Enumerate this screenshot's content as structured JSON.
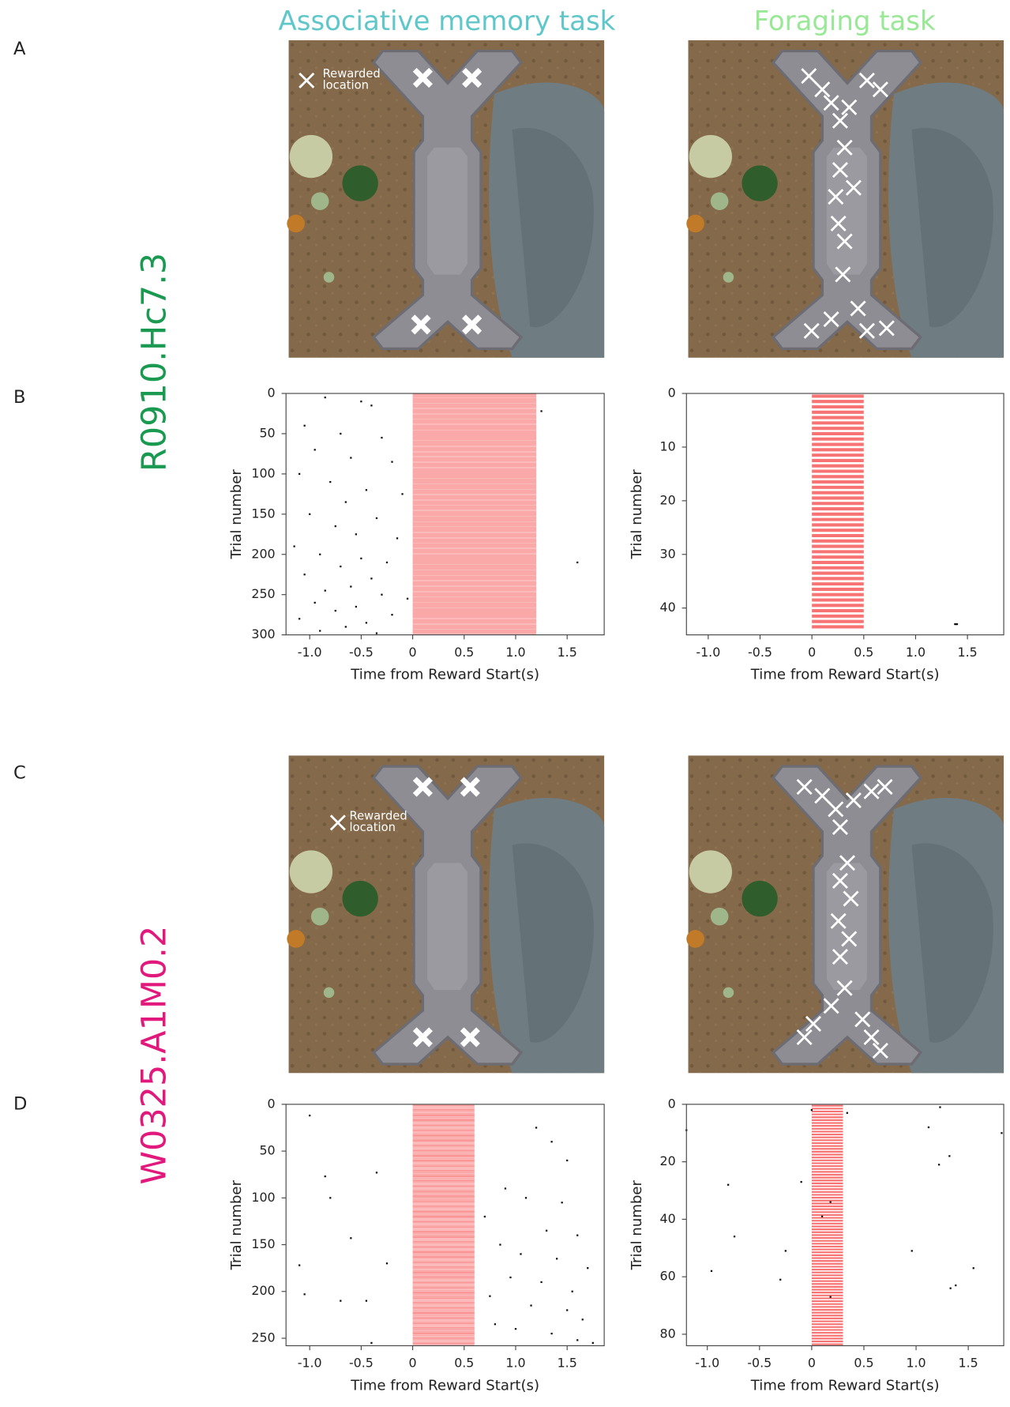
{
  "figure": {
    "column_titles": [
      "Associative memory task",
      "Foraging task"
    ],
    "panel_labels": [
      "A",
      "B",
      "C",
      "D"
    ],
    "row_labels": [
      "R0910.Hc7.3",
      "W0325.A1M0.2"
    ],
    "legend_label": [
      "Rewarded",
      "location"
    ]
  },
  "chart_data": [
    {
      "type": "raster",
      "xlabel": "Time from Reward Start(s)",
      "ylabel": "Trial number",
      "xlim": [
        -1.23,
        1.86
      ],
      "ylim": [
        0,
        300
      ],
      "xticks": [
        {
          "value": -1,
          "label": "-1.0"
        },
        -0.5,
        0,
        0.5,
        {
          "value": 1,
          "label": "1.0"
        },
        1.5
      ],
      "yticks": [
        0,
        50,
        100,
        150,
        200,
        250,
        300
      ],
      "reward_window": [
        0,
        1.2
      ],
      "n_trials": 300,
      "reward_color": "#f87474",
      "spikes": {
        "x": [
          -0.85,
          -0.5,
          -0.4,
          -1.05,
          -0.7,
          -0.3,
          -0.95,
          -0.6,
          -0.2,
          -1.1,
          -0.8,
          -0.45,
          -0.1,
          -0.65,
          -1.0,
          -0.35,
          -0.75,
          -0.55,
          -0.15,
          -1.15,
          -0.9,
          -0.5,
          -0.25,
          -0.7,
          -1.05,
          -0.4,
          -0.6,
          -0.85,
          -0.3,
          -0.05,
          -0.95,
          -0.55,
          -0.75,
          -0.2,
          -1.1,
          -0.45,
          -0.65,
          -0.9,
          -0.35,
          1.25,
          1.6
        ],
        "y": [
          5,
          10,
          15,
          40,
          50,
          55,
          70,
          80,
          85,
          100,
          110,
          120,
          125,
          135,
          150,
          155,
          165,
          175,
          180,
          190,
          200,
          205,
          210,
          215,
          225,
          230,
          240,
          245,
          250,
          255,
          260,
          265,
          270,
          275,
          280,
          285,
          290,
          295,
          298,
          22,
          210
        ]
      }
    },
    {
      "type": "raster",
      "xlabel": "Time from Reward Start(s)",
      "ylabel": "Trial number",
      "xlim": [
        -1.21,
        1.85
      ],
      "ylim": [
        0,
        45
      ],
      "xticks": [
        {
          "value": -1,
          "label": "-1.0"
        },
        -0.5,
        0,
        0.5,
        {
          "value": 1,
          "label": "1.0"
        },
        1.5
      ],
      "yticks": [
        0,
        10,
        20,
        30,
        40
      ],
      "reward_window": [
        0,
        0.5
      ],
      "n_trials": 44,
      "reward_color": "#f87474",
      "spikes": {
        "x": [
          1.38,
          1.39,
          1.4
        ],
        "y": [
          43,
          43,
          43
        ]
      }
    },
    {
      "type": "raster",
      "xlabel": "Time from Reward Start(s)",
      "ylabel": "Trial number",
      "xlim": [
        -1.23,
        1.86
      ],
      "ylim": [
        0,
        258
      ],
      "xticks": [
        {
          "value": -1,
          "label": "-1.0"
        },
        -0.5,
        0,
        0.5,
        {
          "value": 1,
          "label": "1.0"
        },
        1.5
      ],
      "yticks": [
        0,
        50,
        100,
        150,
        200,
        250
      ],
      "reward_window": [
        0,
        0.6
      ],
      "n_trials": 258,
      "reward_color": "#f87474",
      "spikes": {
        "x": [
          -1.0,
          -0.85,
          -0.8,
          -0.35,
          -0.6,
          -0.25,
          -1.1,
          -1.05,
          -0.7,
          -0.45,
          -0.4,
          1.2,
          1.35,
          1.5,
          0.9,
          1.1,
          1.45,
          0.7,
          1.3,
          1.6,
          0.85,
          1.05,
          1.4,
          1.7,
          0.95,
          1.25,
          1.55,
          0.75,
          1.15,
          1.5,
          1.65,
          0.8,
          1.0,
          1.35,
          1.6,
          1.75
        ],
        "y": [
          12,
          77,
          100,
          73,
          143,
          170,
          172,
          203,
          210,
          210,
          255,
          25,
          40,
          60,
          90,
          100,
          105,
          120,
          135,
          140,
          150,
          160,
          165,
          175,
          185,
          190,
          200,
          205,
          215,
          220,
          230,
          235,
          240,
          245,
          252,
          255
        ]
      }
    },
    {
      "type": "raster",
      "xlabel": "Time from Reward Start(s)",
      "ylabel": "Trial number",
      "xlim": [
        -1.2,
        1.84
      ],
      "ylim": [
        0,
        84
      ],
      "xticks": [
        {
          "value": -1,
          "label": "-1.0"
        },
        -0.5,
        0,
        0.5,
        {
          "value": 1,
          "label": "1.0"
        },
        1.5
      ],
      "yticks": [
        0,
        20,
        40,
        60,
        80
      ],
      "reward_window": [
        0,
        0.3
      ],
      "n_trials": 84,
      "reward_color": "#f87474",
      "spikes": {
        "x": [
          -1.2,
          -0.8,
          -0.74,
          -0.3,
          -0.25,
          -0.96,
          -0.1,
          0.0,
          0.1,
          0.18,
          0.18,
          0.34,
          0.96,
          1.12,
          1.22,
          1.23,
          1.32,
          1.33,
          1.38,
          1.55,
          1.82
        ],
        "y": [
          9,
          28,
          46,
          61,
          51,
          58,
          27,
          2,
          39,
          34,
          67,
          3,
          51,
          8,
          21,
          1,
          18,
          64,
          63,
          57,
          10
        ]
      }
    }
  ]
}
